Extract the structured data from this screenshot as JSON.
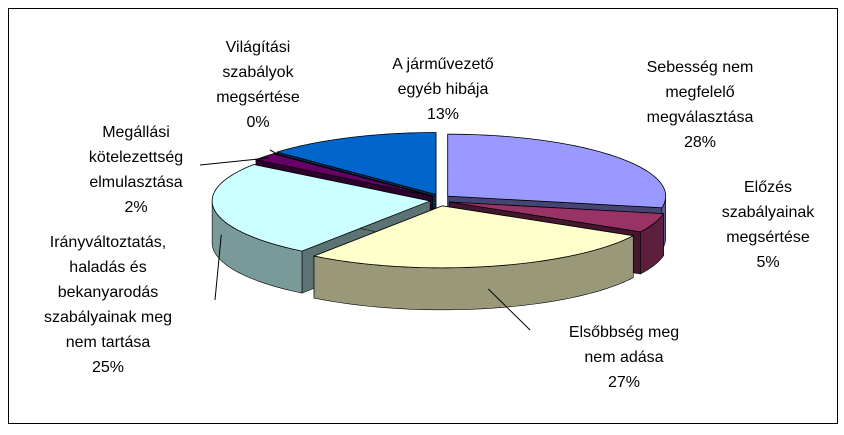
{
  "chart_data": {
    "type": "pie3d",
    "categories": [
      "Sebesség nem\nmegfelelő\nmegválasztása",
      "Előzés\nszabályainak\nmegsértése",
      "Elsőbbség meg\nnem adása",
      "Irányváltoztatás,\nhaladás és\nbekanyarodás\nszabályainak meg\nnem tartása",
      "Megállási\nkötelezettség\nelmulasztása",
      "Világítási\nszabályok\nmegsértése",
      "A járművezető\negyéb hibája"
    ],
    "values": [
      28,
      5,
      27,
      25,
      2,
      0,
      13
    ],
    "value_labels": [
      "28%",
      "5%",
      "27%",
      "25%",
      "2%",
      "0%",
      "13%"
    ],
    "colors": [
      "#9999ff",
      "#993366",
      "#ffffcc",
      "#ccffff",
      "#660066",
      "#ff8080",
      "#0066cc"
    ]
  }
}
